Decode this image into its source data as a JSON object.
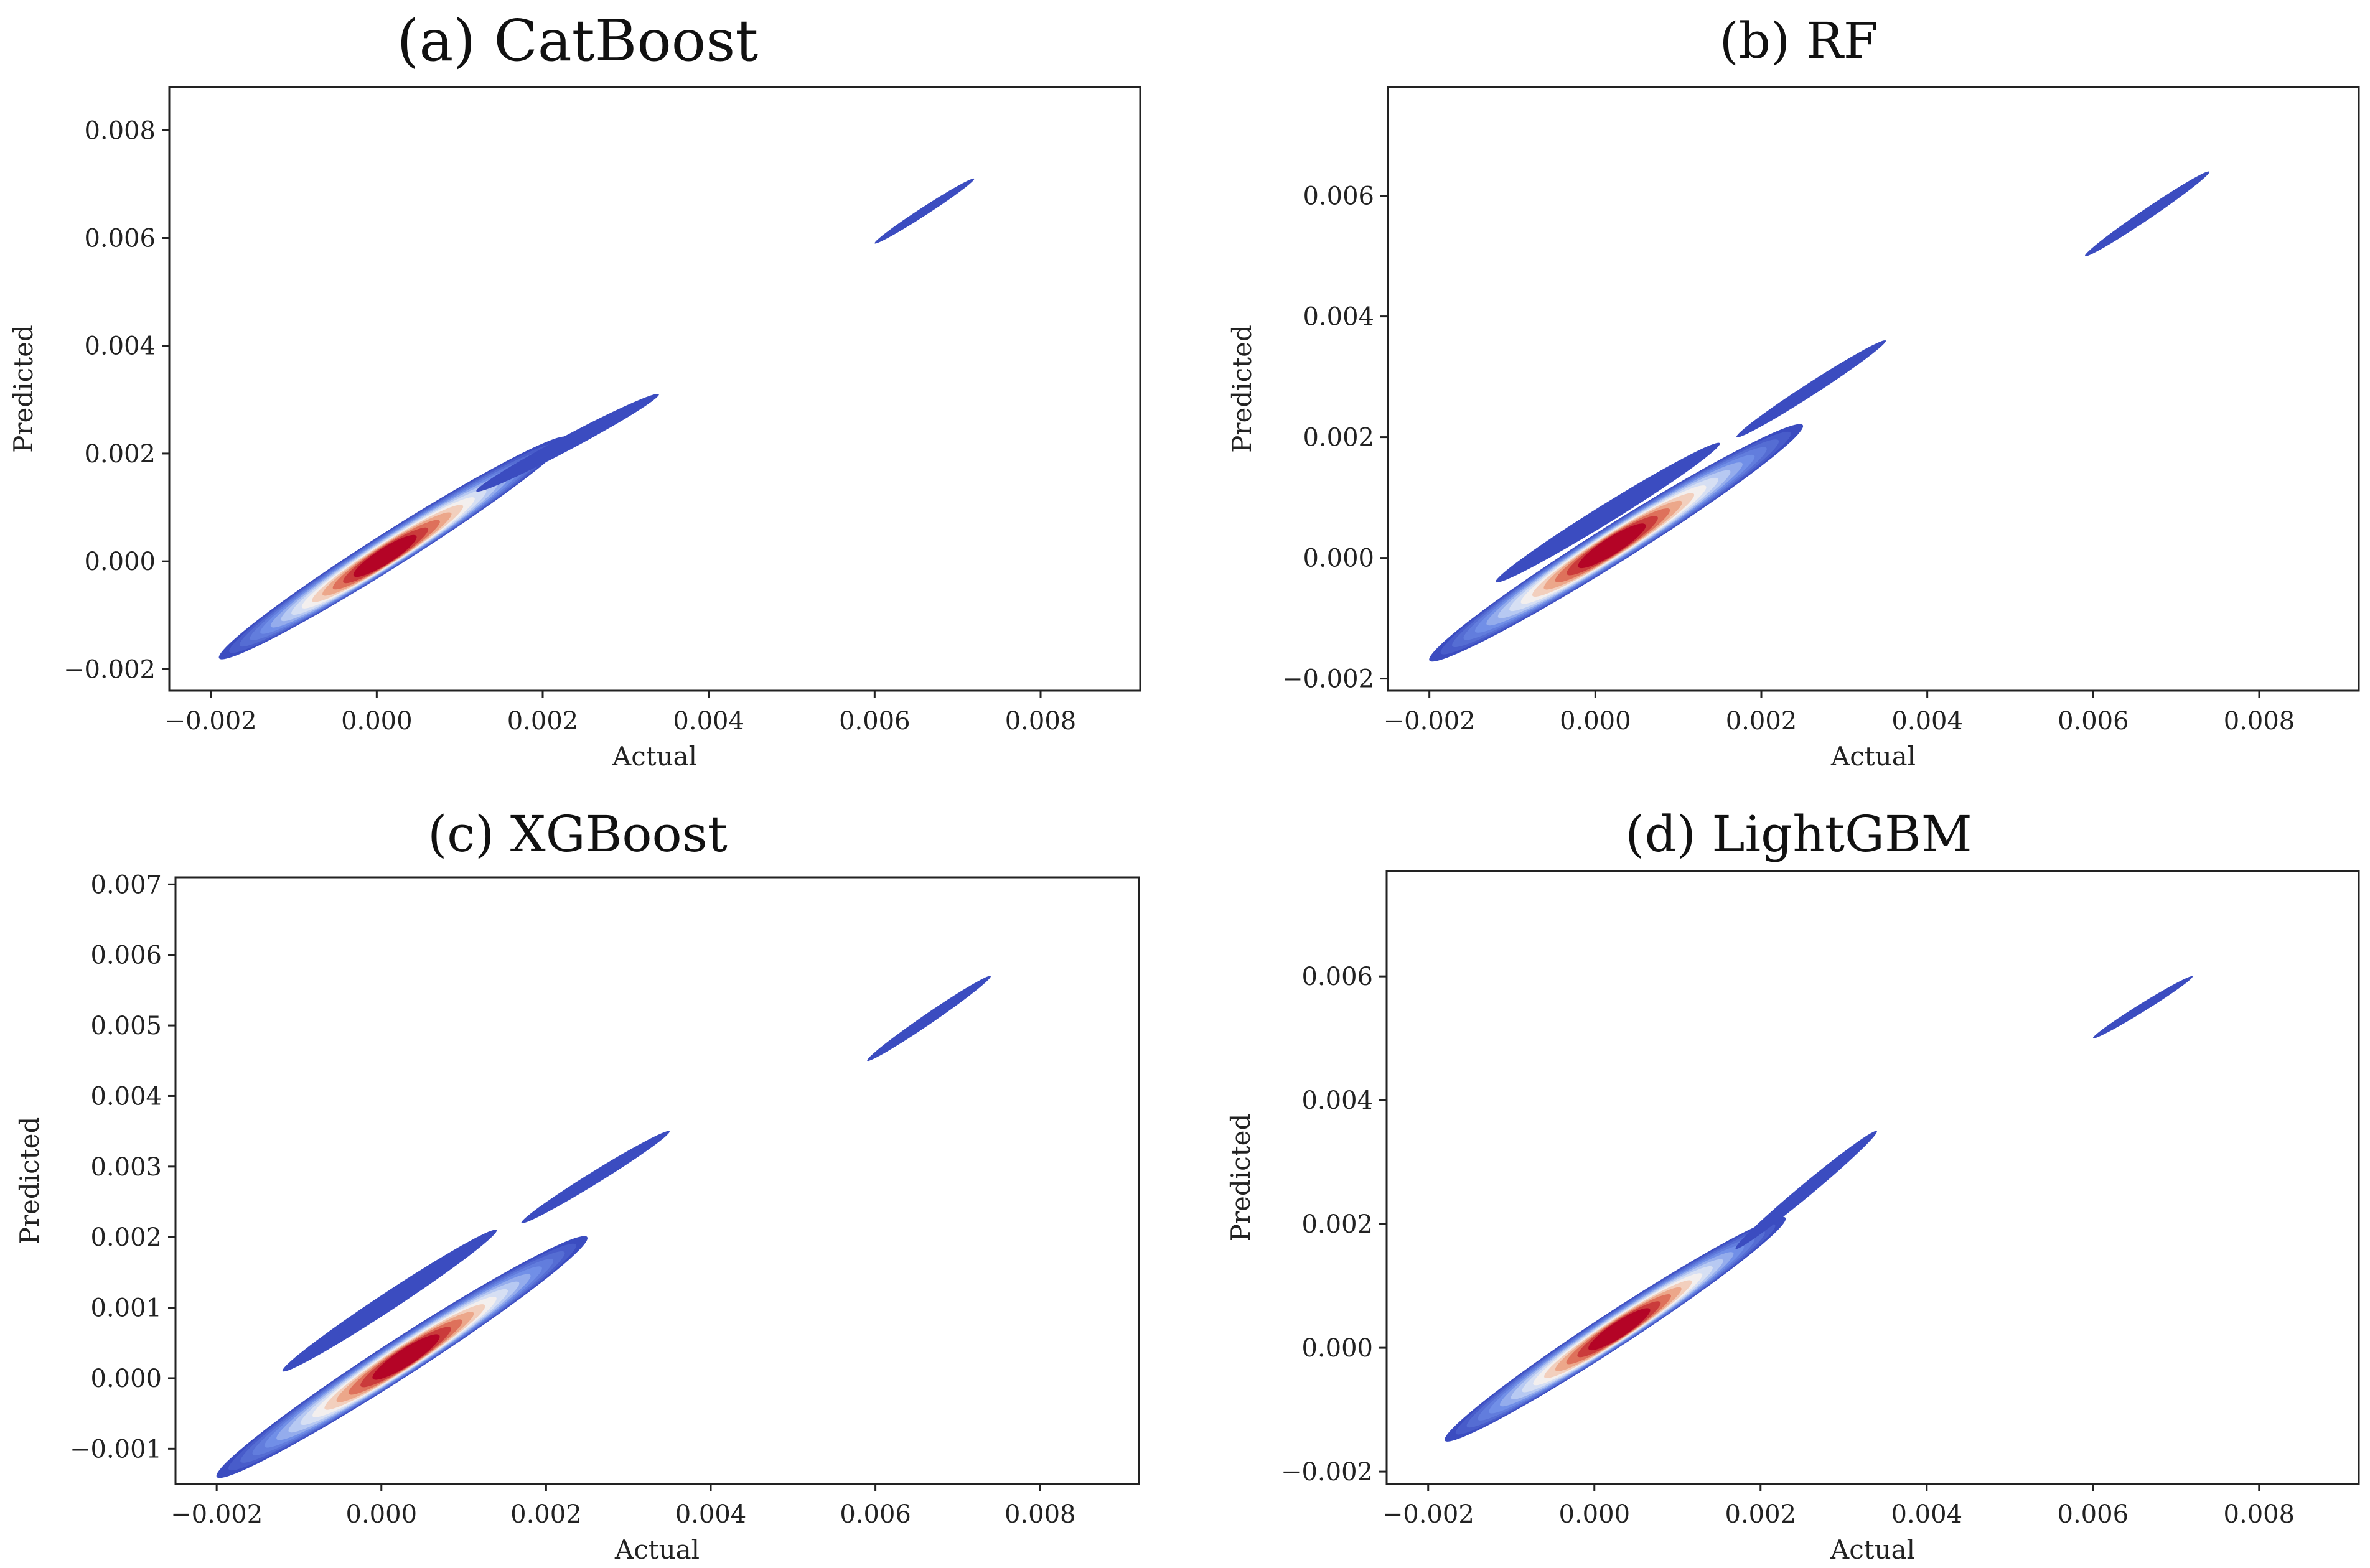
{
  "chart_data": [
    {
      "type": "heatmap",
      "subtype": "kde-density",
      "title": "(a) CatBoost",
      "xlabel": "Actual",
      "ylabel": "Predicted",
      "xlim": [
        -0.0025,
        0.0092
      ],
      "ylim": [
        -0.0024,
        0.0088
      ],
      "xticks": [
        "-0.002",
        "0.000",
        "0.002",
        "0.004",
        "0.006",
        "0.008"
      ],
      "yticks": [
        "-0.002",
        "0.000",
        "0.002",
        "0.004",
        "0.006",
        "0.008"
      ],
      "colormap": "coolwarm",
      "density_clusters": [
        {
          "x_range": [
            -0.0019,
            0.0023
          ],
          "y_range": [
            -0.0018,
            0.0023
          ],
          "center": [
            0.0001,
            0.0001
          ],
          "peak": "high"
        },
        {
          "x_range": [
            0.0012,
            0.0034
          ],
          "y_range": [
            0.0013,
            0.0031
          ],
          "center": [
            0.0023,
            0.0022
          ],
          "peak": "low"
        },
        {
          "x_range": [
            0.006,
            0.0072
          ],
          "y_range": [
            0.0059,
            0.0071
          ],
          "center": [
            0.0066,
            0.0065
          ],
          "peak": "low"
        }
      ]
    },
    {
      "type": "heatmap",
      "subtype": "kde-density",
      "title": "(b) RF",
      "xlabel": "Actual",
      "ylabel": "Predicted",
      "xlim": [
        -0.0025,
        0.0092
      ],
      "ylim": [
        -0.0022,
        0.0078
      ],
      "xticks": [
        "-0.002",
        "0.000",
        "0.002",
        "0.004",
        "0.006",
        "0.008"
      ],
      "yticks": [
        "-0.002",
        "0.000",
        "0.002",
        "0.004",
        "0.006"
      ],
      "colormap": "coolwarm",
      "density_clusters": [
        {
          "x_range": [
            -0.002,
            0.0025
          ],
          "y_range": [
            -0.0017,
            0.0022
          ],
          "center": [
            0.0002,
            0.0002
          ],
          "peak": "high"
        },
        {
          "x_range": [
            -0.0012,
            0.0015
          ],
          "y_range": [
            -0.0004,
            0.0019
          ],
          "center": [
            0.0001,
            0.0007
          ],
          "peak": "low"
        },
        {
          "x_range": [
            0.0017,
            0.0035
          ],
          "y_range": [
            0.002,
            0.0036
          ],
          "center": [
            0.0026,
            0.0028
          ],
          "peak": "low"
        },
        {
          "x_range": [
            0.0059,
            0.0074
          ],
          "y_range": [
            0.005,
            0.0064
          ],
          "center": [
            0.0066,
            0.0057
          ],
          "peak": "low"
        }
      ]
    },
    {
      "type": "heatmap",
      "subtype": "kde-density",
      "title": "(c) XGBoost",
      "xlabel": "Actual",
      "ylabel": "Predicted",
      "xlim": [
        -0.0025,
        0.0092
      ],
      "ylim": [
        -0.0015,
        0.0071
      ],
      "xticks": [
        "-0.002",
        "0.000",
        "0.002",
        "0.004",
        "0.006",
        "0.008"
      ],
      "yticks": [
        "-0.001",
        "0.000",
        "0.001",
        "0.002",
        "0.003",
        "0.004",
        "0.005",
        "0.006",
        "0.007"
      ],
      "colormap": "coolwarm",
      "density_clusters": [
        {
          "x_range": [
            -0.002,
            0.0025
          ],
          "y_range": [
            -0.0014,
            0.002
          ],
          "center": [
            0.0003,
            0.0003
          ],
          "peak": "high"
        },
        {
          "x_range": [
            -0.0012,
            0.0014
          ],
          "y_range": [
            0.0001,
            0.0021
          ],
          "center": [
            0.0001,
            0.0011
          ],
          "peak": "low"
        },
        {
          "x_range": [
            0.0017,
            0.0035
          ],
          "y_range": [
            0.0022,
            0.0035
          ],
          "center": [
            0.0026,
            0.0029
          ],
          "peak": "low"
        },
        {
          "x_range": [
            0.0059,
            0.0074
          ],
          "y_range": [
            0.0045,
            0.0057
          ],
          "center": [
            0.0066,
            0.0051
          ],
          "peak": "low"
        }
      ]
    },
    {
      "type": "heatmap",
      "subtype": "kde-density",
      "title": "(d) LightGBM",
      "xlabel": "Actual",
      "ylabel": "Predicted",
      "xlim": [
        -0.0025,
        0.0092
      ],
      "ylim": [
        -0.0022,
        0.0077
      ],
      "xticks": [
        "-0.002",
        "0.000",
        "0.002",
        "0.004",
        "0.006",
        "0.008"
      ],
      "yticks": [
        "-0.002",
        "0.000",
        "0.002",
        "0.004",
        "0.006"
      ],
      "colormap": "coolwarm",
      "density_clusters": [
        {
          "x_range": [
            -0.0018,
            0.0023
          ],
          "y_range": [
            -0.0015,
            0.0021
          ],
          "center": [
            0.0003,
            0.0003
          ],
          "peak": "high"
        },
        {
          "x_range": [
            0.0017,
            0.0034
          ],
          "y_range": [
            0.0016,
            0.0035
          ],
          "center": [
            0.0025,
            0.0025
          ],
          "peak": "low"
        },
        {
          "x_range": [
            0.006,
            0.0072
          ],
          "y_range": [
            0.005,
            0.006
          ],
          "center": [
            0.0066,
            0.0055
          ],
          "peak": "low"
        }
      ]
    }
  ]
}
